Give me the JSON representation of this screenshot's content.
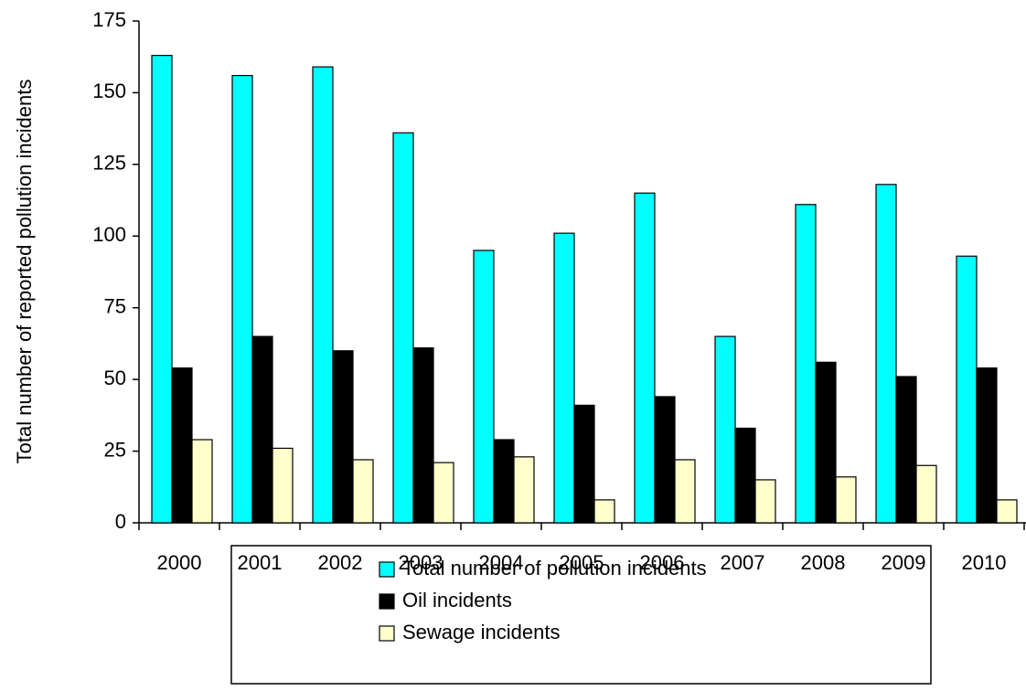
{
  "chart_data": {
    "type": "bar",
    "y_axis_label": "Total number of reported pollution incidents",
    "categories": [
      "2000",
      "2001",
      "2002",
      "2003",
      "2004",
      "2005",
      "2006",
      "2007",
      "2008",
      "2009",
      "2010"
    ],
    "series": [
      {
        "name": "Total number of pollution incidents",
        "color": "#00FFFF",
        "values": [
          163,
          156,
          159,
          136,
          95,
          101,
          115,
          65,
          111,
          118,
          93
        ]
      },
      {
        "name": "Oil incidents",
        "color": "#000000",
        "values": [
          54,
          65,
          60,
          61,
          29,
          41,
          44,
          33,
          56,
          51,
          54
        ]
      },
      {
        "name": "Sewage incidents",
        "color": "#FFFFCC",
        "values": [
          29,
          26,
          22,
          21,
          23,
          8,
          22,
          15,
          16,
          20,
          8
        ]
      }
    ],
    "ylim": [
      0,
      175
    ],
    "yticks": [
      0,
      25,
      50,
      75,
      100,
      125,
      150,
      175
    ],
    "grid": false,
    "legend": "bottom"
  }
}
